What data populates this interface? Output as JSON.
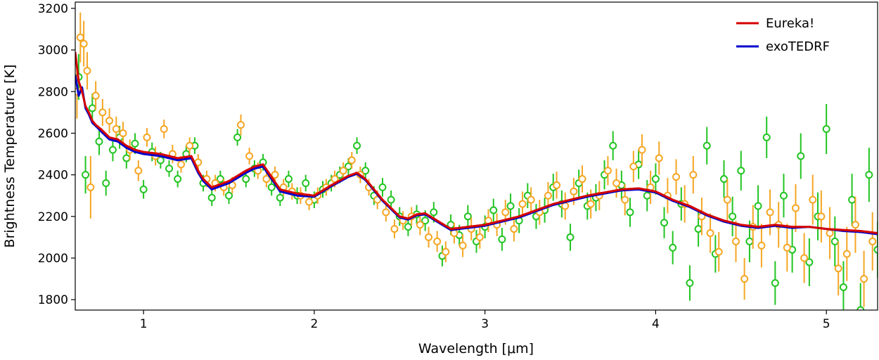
{
  "chart_data": {
    "type": "scatter",
    "xlabel": "Wavelength [μm]",
    "ylabel": "Brightness Temperature [K]",
    "xlim": [
      0.6,
      5.3
    ],
    "ylim": [
      1750,
      3230
    ],
    "xticks": [
      1,
      2,
      3,
      4,
      5
    ],
    "yticks": [
      1800,
      2000,
      2200,
      2400,
      2600,
      2800,
      3000,
      3200
    ],
    "legend_position": "top-right",
    "grid": false,
    "series": [
      {
        "name": "Eureka!",
        "kind": "line",
        "color": "#d40000",
        "x": [
          0.6,
          0.62,
          0.64,
          0.66,
          0.68,
          0.7,
          0.72,
          0.75,
          0.8,
          0.85,
          0.9,
          0.95,
          1.0,
          1.1,
          1.2,
          1.28,
          1.32,
          1.35,
          1.4,
          1.5,
          1.6,
          1.65,
          1.7,
          1.8,
          1.9,
          2.0,
          2.1,
          2.2,
          2.25,
          2.3,
          2.4,
          2.5,
          2.55,
          2.6,
          2.65,
          2.7,
          2.8,
          2.9,
          3.0,
          3.2,
          3.4,
          3.6,
          3.8,
          3.9,
          4.0,
          4.1,
          4.2,
          4.3,
          4.4,
          4.5,
          4.6,
          4.7,
          4.8,
          4.9,
          5.0,
          5.1,
          5.2,
          5.3
        ],
        "y": [
          2990,
          2850,
          2800,
          2730,
          2700,
          2660,
          2640,
          2620,
          2580,
          2570,
          2540,
          2520,
          2510,
          2500,
          2480,
          2490,
          2420,
          2380,
          2340,
          2370,
          2420,
          2440,
          2450,
          2330,
          2310,
          2300,
          2350,
          2395,
          2410,
          2380,
          2280,
          2200,
          2190,
          2210,
          2215,
          2190,
          2140,
          2150,
          2160,
          2200,
          2260,
          2300,
          2330,
          2335,
          2320,
          2280,
          2250,
          2210,
          2180,
          2160,
          2150,
          2160,
          2150,
          2150,
          2140,
          2135,
          2130,
          2120
        ]
      },
      {
        "name": "exoTEDRF",
        "kind": "line",
        "color": "#0000cc",
        "x": [
          0.6,
          0.62,
          0.64,
          0.66,
          0.68,
          0.7,
          0.72,
          0.75,
          0.8,
          0.85,
          0.9,
          0.95,
          1.0,
          1.1,
          1.2,
          1.28,
          1.32,
          1.35,
          1.4,
          1.5,
          1.6,
          1.65,
          1.7,
          1.8,
          1.9,
          2.0,
          2.1,
          2.2,
          2.25,
          2.3,
          2.4,
          2.5,
          2.55,
          2.6,
          2.65,
          2.7,
          2.8,
          2.9,
          3.0,
          3.2,
          3.4,
          3.6,
          3.8,
          3.9,
          4.0,
          4.1,
          4.2,
          4.3,
          4.4,
          4.5,
          4.6,
          4.7,
          4.8,
          4.9,
          5.0,
          5.1,
          5.2,
          5.3
        ],
        "y": [
          2880,
          2780,
          2820,
          2720,
          2690,
          2650,
          2635,
          2610,
          2570,
          2560,
          2530,
          2510,
          2500,
          2490,
          2470,
          2480,
          2410,
          2370,
          2330,
          2360,
          2410,
          2430,
          2440,
          2320,
          2300,
          2295,
          2345,
          2390,
          2405,
          2375,
          2275,
          2195,
          2185,
          2205,
          2210,
          2185,
          2135,
          2145,
          2155,
          2195,
          2255,
          2295,
          2325,
          2330,
          2315,
          2275,
          2245,
          2205,
          2175,
          2155,
          2145,
          2155,
          2145,
          2150,
          2140,
          2130,
          2125,
          2115
        ]
      },
      {
        "name": "",
        "kind": "errorbar-points",
        "color": "#22c422",
        "x": [
          0.62,
          0.66,
          0.7,
          0.74,
          0.78,
          0.82,
          0.86,
          0.9,
          0.95,
          1.0,
          1.05,
          1.1,
          1.15,
          1.2,
          1.25,
          1.3,
          1.35,
          1.4,
          1.45,
          1.5,
          1.55,
          1.6,
          1.65,
          1.7,
          1.75,
          1.8,
          1.85,
          1.9,
          1.95,
          2.0,
          2.05,
          2.1,
          2.15,
          2.2,
          2.25,
          2.3,
          2.35,
          2.4,
          2.45,
          2.5,
          2.55,
          2.6,
          2.65,
          2.7,
          2.75,
          2.8,
          2.85,
          2.9,
          2.95,
          3.0,
          3.05,
          3.1,
          3.15,
          3.2,
          3.25,
          3.3,
          3.35,
          3.4,
          3.45,
          3.5,
          3.55,
          3.6,
          3.65,
          3.7,
          3.75,
          3.8,
          3.85,
          3.9,
          3.95,
          4.0,
          4.05,
          4.1,
          4.15,
          4.2,
          4.25,
          4.3,
          4.35,
          4.4,
          4.45,
          4.5,
          4.55,
          4.6,
          4.65,
          4.7,
          4.75,
          4.8,
          4.85,
          4.9,
          4.95,
          5.0,
          5.05,
          5.1,
          5.15,
          5.2,
          5.25,
          5.3
        ],
        "y": [
          2870,
          2400,
          2720,
          2560,
          2360,
          2520,
          2580,
          2480,
          2550,
          2330,
          2510,
          2470,
          2430,
          2380,
          2500,
          2540,
          2360,
          2290,
          2380,
          2300,
          2580,
          2380,
          2430,
          2460,
          2340,
          2290,
          2380,
          2300,
          2360,
          2280,
          2330,
          2360,
          2400,
          2440,
          2540,
          2420,
          2300,
          2340,
          2280,
          2200,
          2150,
          2210,
          2180,
          2220,
          2010,
          2160,
          2110,
          2200,
          2080,
          2150,
          2230,
          2090,
          2250,
          2180,
          2300,
          2200,
          2230,
          2340,
          2260,
          2100,
          2360,
          2250,
          2290,
          2400,
          2540,
          2350,
          2220,
          2450,
          2300,
          2380,
          2170,
          2050,
          2260,
          1880,
          2140,
          2540,
          2020,
          2380,
          2200,
          2420,
          2080,
          2250,
          2580,
          1880,
          2300,
          2040,
          2490,
          1980,
          2200,
          2620,
          2080,
          1860,
          2280,
          1750,
          2400,
          2040
        ],
        "err": [
          110,
          90,
          70,
          65,
          60,
          55,
          55,
          50,
          50,
          45,
          45,
          40,
          40,
          40,
          40,
          40,
          40,
          40,
          40,
          40,
          40,
          40,
          40,
          40,
          40,
          40,
          40,
          40,
          40,
          40,
          40,
          40,
          40,
          40,
          40,
          40,
          45,
          45,
          45,
          45,
          45,
          45,
          50,
          50,
          50,
          50,
          50,
          55,
          55,
          55,
          55,
          55,
          60,
          60,
          60,
          60,
          60,
          65,
          65,
          65,
          65,
          65,
          65,
          70,
          70,
          70,
          70,
          70,
          75,
          75,
          75,
          80,
          80,
          85,
          85,
          90,
          90,
          90,
          95,
          95,
          100,
          100,
          100,
          105,
          105,
          110,
          110,
          115,
          115,
          120,
          120,
          125,
          125,
          130,
          130,
          135
        ]
      },
      {
        "name": "",
        "kind": "errorbar-points",
        "color": "#f5a623",
        "x": [
          0.61,
          0.63,
          0.65,
          0.67,
          0.69,
          0.72,
          0.76,
          0.8,
          0.84,
          0.88,
          0.92,
          0.97,
          1.02,
          1.07,
          1.12,
          1.17,
          1.22,
          1.27,
          1.32,
          1.37,
          1.42,
          1.47,
          1.52,
          1.57,
          1.62,
          1.67,
          1.72,
          1.77,
          1.82,
          1.87,
          1.92,
          1.97,
          2.02,
          2.07,
          2.12,
          2.17,
          2.22,
          2.27,
          2.32,
          2.37,
          2.42,
          2.47,
          2.52,
          2.57,
          2.62,
          2.67,
          2.72,
          2.77,
          2.82,
          2.87,
          2.92,
          2.97,
          3.02,
          3.07,
          3.12,
          3.17,
          3.22,
          3.27,
          3.32,
          3.37,
          3.42,
          3.47,
          3.52,
          3.57,
          3.62,
          3.67,
          3.72,
          3.77,
          3.82,
          3.87,
          3.92,
          3.97,
          4.02,
          4.07,
          4.12,
          4.17,
          4.22,
          4.27,
          4.32,
          4.37,
          4.42,
          4.47,
          4.52,
          4.57,
          4.62,
          4.67,
          4.72,
          4.77,
          4.82,
          4.87,
          4.92,
          4.97,
          5.02,
          5.07,
          5.12,
          5.17,
          5.22,
          5.27
        ],
        "y": [
          2800,
          3060,
          3030,
          2900,
          2340,
          2780,
          2700,
          2660,
          2620,
          2600,
          2520,
          2420,
          2580,
          2490,
          2620,
          2500,
          2450,
          2540,
          2460,
          2380,
          2360,
          2340,
          2350,
          2640,
          2490,
          2420,
          2380,
          2400,
          2340,
          2320,
          2300,
          2270,
          2300,
          2340,
          2380,
          2420,
          2470,
          2400,
          2340,
          2280,
          2220,
          2140,
          2180,
          2200,
          2160,
          2100,
          2080,
          2030,
          2120,
          2060,
          2140,
          2100,
          2180,
          2160,
          2220,
          2140,
          2260,
          2280,
          2220,
          2300,
          2350,
          2250,
          2320,
          2380,
          2260,
          2300,
          2420,
          2360,
          2280,
          2440,
          2520,
          2340,
          2480,
          2300,
          2390,
          2260,
          2400,
          2200,
          2120,
          2030,
          2280,
          2080,
          1900,
          2150,
          2060,
          2220,
          2160,
          2050,
          2240,
          2000,
          2280,
          2200,
          2120,
          1950,
          2020,
          2160,
          1900,
          2080
        ],
        "err": [
          130,
          120,
          110,
          90,
          150,
          70,
          65,
          60,
          60,
          55,
          50,
          50,
          45,
          45,
          45,
          45,
          40,
          40,
          40,
          40,
          40,
          40,
          40,
          50,
          40,
          40,
          40,
          40,
          40,
          40,
          40,
          40,
          40,
          40,
          40,
          40,
          40,
          40,
          40,
          45,
          45,
          45,
          45,
          45,
          50,
          50,
          50,
          50,
          50,
          55,
          55,
          55,
          55,
          55,
          60,
          60,
          60,
          60,
          60,
          65,
          65,
          65,
          65,
          65,
          70,
          70,
          70,
          70,
          75,
          75,
          75,
          80,
          80,
          85,
          85,
          90,
          90,
          90,
          95,
          95,
          100,
          100,
          100,
          105,
          105,
          110,
          110,
          115,
          115,
          120,
          120,
          125,
          125,
          130,
          130,
          135,
          135,
          140
        ]
      }
    ]
  }
}
